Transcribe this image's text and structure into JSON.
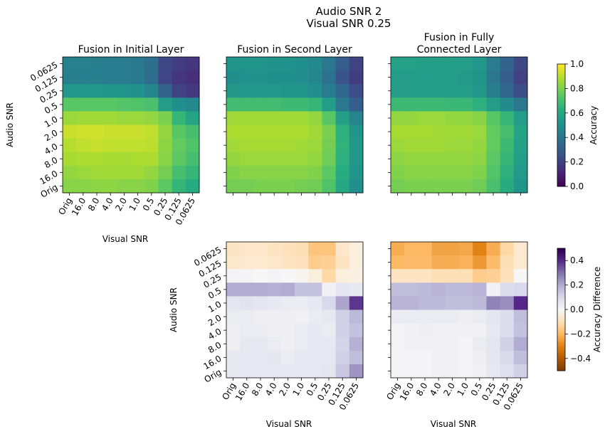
{
  "figure": {
    "title_line1": "Audio SNR 2",
    "title_line2": "Visual SNR 0.25"
  },
  "chart_data": [
    {
      "type": "heatmap",
      "id": "initial",
      "title": [
        "Fusion in Initial Layer"
      ],
      "xlabel": "Visual SNR",
      "ylabel": "Audio SNR",
      "x": [
        "Orig",
        "16.0",
        "8.0",
        "4.0",
        "2.0",
        "1.0",
        "0.5",
        "0.25",
        "0.125",
        "0.0625"
      ],
      "y": [
        "0.0625",
        "0.125",
        "0.25",
        "0.5",
        "1.0",
        "2.0",
        "4.0",
        "8.0",
        "16.0",
        "Orig"
      ],
      "colormap": "viridis",
      "vmin": 0.0,
      "vmax": 1.0,
      "values": [
        [
          0.44,
          0.44,
          0.43,
          0.42,
          0.42,
          0.41,
          0.37,
          0.22,
          0.18,
          0.16
        ],
        [
          0.43,
          0.43,
          0.43,
          0.42,
          0.42,
          0.41,
          0.36,
          0.21,
          0.16,
          0.14
        ],
        [
          0.53,
          0.53,
          0.53,
          0.52,
          0.52,
          0.51,
          0.46,
          0.32,
          0.2,
          0.17
        ],
        [
          0.74,
          0.74,
          0.74,
          0.74,
          0.73,
          0.72,
          0.71,
          0.55,
          0.5,
          0.47
        ],
        [
          0.85,
          0.86,
          0.86,
          0.86,
          0.85,
          0.85,
          0.84,
          0.8,
          0.66,
          0.58
        ],
        [
          0.92,
          0.93,
          0.93,
          0.92,
          0.92,
          0.92,
          0.91,
          0.84,
          0.74,
          0.7
        ],
        [
          0.89,
          0.91,
          0.92,
          0.91,
          0.91,
          0.91,
          0.9,
          0.83,
          0.76,
          0.72
        ],
        [
          0.87,
          0.88,
          0.88,
          0.87,
          0.87,
          0.88,
          0.88,
          0.82,
          0.75,
          0.7
        ],
        [
          0.84,
          0.85,
          0.86,
          0.86,
          0.86,
          0.86,
          0.84,
          0.79,
          0.7,
          0.66
        ],
        [
          0.82,
          0.82,
          0.83,
          0.83,
          0.82,
          0.82,
          0.81,
          0.75,
          0.66,
          0.62
        ]
      ]
    },
    {
      "type": "heatmap",
      "id": "second",
      "title": [
        "Fusion in Second Layer"
      ],
      "xlabel": "",
      "ylabel": "",
      "x": [
        "Orig",
        "16.0",
        "8.0",
        "4.0",
        "2.0",
        "1.0",
        "0.5",
        "0.25",
        "0.125",
        "0.0625"
      ],
      "y": [
        "0.0625",
        "0.125",
        "0.25",
        "0.5",
        "1.0",
        "2.0",
        "4.0",
        "8.0",
        "16.0",
        "Orig"
      ],
      "colormap": "viridis",
      "vmin": 0.0,
      "vmax": 1.0,
      "values": [
        [
          0.52,
          0.52,
          0.52,
          0.51,
          0.51,
          0.5,
          0.47,
          0.4,
          0.3,
          0.2
        ],
        [
          0.5,
          0.51,
          0.51,
          0.5,
          0.5,
          0.49,
          0.46,
          0.38,
          0.26,
          0.18
        ],
        [
          0.53,
          0.53,
          0.53,
          0.53,
          0.52,
          0.52,
          0.49,
          0.42,
          0.34,
          0.24
        ],
        [
          0.69,
          0.69,
          0.69,
          0.69,
          0.68,
          0.68,
          0.66,
          0.55,
          0.4,
          0.3
        ],
        [
          0.86,
          0.86,
          0.86,
          0.86,
          0.86,
          0.86,
          0.84,
          0.74,
          0.56,
          0.45
        ],
        [
          0.88,
          0.88,
          0.88,
          0.88,
          0.88,
          0.88,
          0.86,
          0.8,
          0.64,
          0.52
        ],
        [
          0.86,
          0.87,
          0.87,
          0.87,
          0.87,
          0.86,
          0.85,
          0.79,
          0.65,
          0.53
        ],
        [
          0.84,
          0.85,
          0.85,
          0.85,
          0.85,
          0.85,
          0.84,
          0.78,
          0.64,
          0.53
        ],
        [
          0.81,
          0.82,
          0.82,
          0.82,
          0.82,
          0.82,
          0.81,
          0.75,
          0.62,
          0.52
        ],
        [
          0.79,
          0.79,
          0.8,
          0.8,
          0.8,
          0.79,
          0.78,
          0.72,
          0.6,
          0.5
        ]
      ]
    },
    {
      "type": "heatmap",
      "id": "fc",
      "title": [
        "Fusion in Fully",
        "Connected Layer"
      ],
      "xlabel": "",
      "ylabel": "",
      "x": [
        "Orig",
        "16.0",
        "8.0",
        "4.0",
        "2.0",
        "1.0",
        "0.5",
        "0.25",
        "0.125",
        "0.0625"
      ],
      "y": [
        "0.0625",
        "0.125",
        "0.25",
        "0.5",
        "1.0",
        "2.0",
        "4.0",
        "8.0",
        "16.0",
        "Orig"
      ],
      "colormap": "viridis",
      "vmin": 0.0,
      "vmax": 1.0,
      "values": [
        [
          0.57,
          0.57,
          0.56,
          0.56,
          0.56,
          0.55,
          0.53,
          0.42,
          0.32,
          0.22
        ],
        [
          0.55,
          0.55,
          0.55,
          0.55,
          0.55,
          0.54,
          0.52,
          0.4,
          0.3,
          0.2
        ],
        [
          0.56,
          0.56,
          0.56,
          0.56,
          0.56,
          0.55,
          0.53,
          0.43,
          0.33,
          0.24
        ],
        [
          0.68,
          0.68,
          0.68,
          0.68,
          0.67,
          0.67,
          0.64,
          0.55,
          0.48,
          0.4
        ],
        [
          0.84,
          0.84,
          0.85,
          0.85,
          0.84,
          0.84,
          0.82,
          0.74,
          0.66,
          0.55
        ],
        [
          0.87,
          0.87,
          0.87,
          0.86,
          0.86,
          0.86,
          0.85,
          0.76,
          0.7,
          0.58
        ],
        [
          0.85,
          0.86,
          0.86,
          0.86,
          0.85,
          0.85,
          0.84,
          0.76,
          0.68,
          0.57
        ],
        [
          0.83,
          0.84,
          0.84,
          0.84,
          0.84,
          0.84,
          0.83,
          0.75,
          0.66,
          0.56
        ],
        [
          0.81,
          0.82,
          0.82,
          0.82,
          0.82,
          0.82,
          0.81,
          0.73,
          0.64,
          0.54
        ],
        [
          0.79,
          0.8,
          0.8,
          0.8,
          0.8,
          0.8,
          0.78,
          0.71,
          0.62,
          0.52
        ]
      ]
    },
    {
      "type": "heatmap",
      "id": "diff_second",
      "title": [],
      "xlabel": "Visual SNR",
      "ylabel": "Audio SNR",
      "x": [
        "Orig",
        "16.0",
        "8.0",
        "4.0",
        "2.0",
        "1.0",
        "0.5",
        "0.25",
        "0.125",
        "0.0625"
      ],
      "y": [
        "0.0625",
        "0.125",
        "0.25",
        "0.5",
        "1.0",
        "2.0",
        "4.0",
        "8.0",
        "16.0",
        "Orig"
      ],
      "colormap": "PuOr",
      "vmin": -0.5,
      "vmax": 0.5,
      "values": [
        [
          -0.08,
          -0.07,
          -0.07,
          -0.08,
          -0.09,
          -0.1,
          -0.17,
          -0.17,
          -0.07,
          -0.04
        ],
        [
          -0.07,
          -0.06,
          -0.06,
          -0.07,
          -0.08,
          -0.09,
          -0.15,
          -0.14,
          -0.08,
          -0.04
        ],
        [
          0.01,
          0.01,
          0.0,
          0.01,
          0.0,
          -0.01,
          -0.04,
          -0.12,
          -0.04,
          -0.03
        ],
        [
          0.2,
          0.2,
          0.2,
          0.19,
          0.2,
          0.15,
          0.15,
          0.02,
          0.06,
          0.05
        ],
        [
          0.06,
          0.07,
          0.06,
          0.05,
          0.04,
          0.04,
          0.05,
          0.1,
          0.21,
          0.38
        ],
        [
          0.04,
          0.04,
          0.03,
          0.03,
          0.03,
          0.02,
          0.04,
          0.05,
          0.12,
          0.17
        ],
        [
          0.03,
          0.04,
          0.04,
          0.03,
          0.03,
          0.04,
          0.05,
          0.04,
          0.12,
          0.15
        ],
        [
          0.03,
          0.05,
          0.05,
          0.04,
          0.03,
          0.04,
          0.05,
          0.05,
          0.11,
          0.19
        ],
        [
          0.05,
          0.05,
          0.05,
          0.06,
          0.04,
          0.05,
          0.05,
          0.05,
          0.12,
          0.16
        ],
        [
          0.05,
          0.05,
          0.05,
          0.05,
          0.05,
          0.05,
          0.05,
          0.06,
          0.14,
          0.24
        ]
      ]
    },
    {
      "type": "heatmap",
      "id": "diff_fc",
      "title": [],
      "xlabel": "Visual SNR",
      "ylabel": "",
      "x": [
        "Orig",
        "16.0",
        "8.0",
        "4.0",
        "2.0",
        "1.0",
        "0.5",
        "0.25",
        "0.125",
        "0.0625"
      ],
      "y": [
        "0.0625",
        "0.125",
        "0.25",
        "0.5",
        "1.0",
        "2.0",
        "4.0",
        "8.0",
        "16.0",
        "Orig"
      ],
      "colormap": "PuOr",
      "vmin": -0.5,
      "vmax": 0.5,
      "values": [
        [
          -0.22,
          -0.2,
          -0.2,
          -0.24,
          -0.24,
          -0.23,
          -0.3,
          -0.22,
          -0.12,
          -0.06
        ],
        [
          -0.2,
          -0.19,
          -0.19,
          -0.22,
          -0.22,
          -0.21,
          -0.26,
          -0.19,
          -0.1,
          -0.06
        ],
        [
          -0.08,
          -0.08,
          -0.08,
          -0.1,
          -0.1,
          -0.1,
          -0.15,
          -0.14,
          -0.09,
          0.0
        ],
        [
          0.16,
          0.16,
          0.17,
          0.18,
          0.17,
          0.17,
          0.18,
          0.02,
          0.09,
          0.1
        ],
        [
          0.18,
          0.18,
          0.17,
          0.17,
          0.16,
          0.16,
          0.17,
          0.27,
          0.25,
          0.4
        ],
        [
          0.04,
          0.04,
          0.04,
          0.04,
          0.04,
          0.03,
          0.04,
          0.06,
          0.09,
          0.16
        ],
        [
          0.01,
          0.02,
          0.03,
          0.02,
          0.02,
          0.02,
          0.02,
          0.05,
          0.09,
          0.15
        ],
        [
          0.01,
          0.02,
          0.02,
          0.02,
          0.02,
          0.01,
          0.04,
          0.06,
          0.12,
          0.2
        ],
        [
          0.01,
          0.01,
          0.01,
          0.02,
          0.02,
          0.01,
          0.03,
          0.06,
          0.1,
          0.16
        ],
        [
          0.01,
          0.01,
          0.01,
          0.02,
          0.02,
          0.01,
          0.02,
          0.05,
          0.08,
          0.12
        ]
      ]
    }
  ],
  "colorbars": [
    {
      "id": "cb_acc",
      "label": "Accuracy",
      "colormap": "viridis",
      "vmin": 0.0,
      "vmax": 1.0,
      "ticks": [
        0.0,
        0.2,
        0.4,
        0.6,
        0.8,
        1.0
      ],
      "tick_labels": [
        "0.0",
        "0.2",
        "0.4",
        "0.6",
        "0.8",
        "1.0"
      ]
    },
    {
      "id": "cb_diff",
      "label": "Accuracy Difference",
      "colormap": "PuOr",
      "vmin": -0.5,
      "vmax": 0.5,
      "ticks": [
        -0.4,
        -0.2,
        0.0,
        0.2,
        0.4
      ],
      "tick_labels": [
        "−0.4",
        "−0.2",
        "0.0",
        "0.2",
        "0.4"
      ]
    }
  ]
}
